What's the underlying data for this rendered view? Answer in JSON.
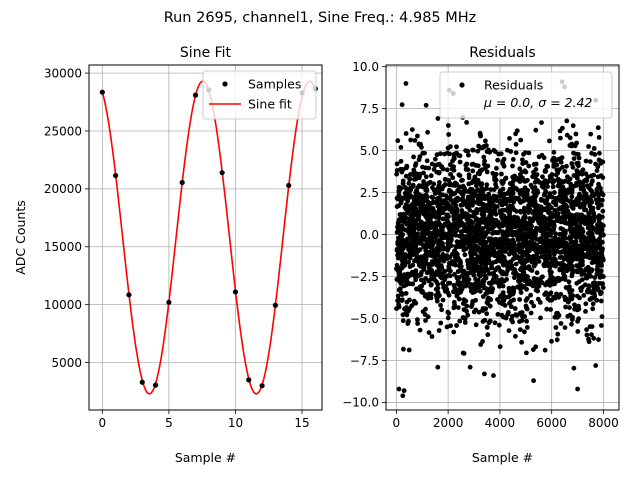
{
  "figure": {
    "suptitle": "Run 2695, channel1, Sine Freq.: 4.985 MHz"
  },
  "chart_data": [
    {
      "type": "scatter",
      "title": "Sine Fit",
      "xlabel": "Sample #",
      "ylabel": "ADC Counts",
      "xlim": [
        -1,
        16.5
      ],
      "ylim": [
        900,
        30700
      ],
      "xticks": [
        0,
        5,
        10,
        15
      ],
      "yticks": [
        5000,
        10000,
        15000,
        20000,
        25000,
        30000
      ],
      "grid": true,
      "legend_position": "upper right",
      "series": [
        {
          "name": "Samples",
          "kind": "points",
          "color": "#000000",
          "x": [
            0,
            1,
            2,
            3,
            4,
            5,
            6,
            7,
            8,
            9,
            10,
            11,
            12,
            13,
            14,
            15,
            16
          ],
          "y": [
            28350,
            21150,
            10850,
            3300,
            3050,
            10200,
            20550,
            28100,
            28550,
            21400,
            11100,
            3500,
            3000,
            9950,
            20300,
            28300,
            28650
          ]
        },
        {
          "name": "Sine fit",
          "kind": "line",
          "color": "#ff0000",
          "function": {
            "offset": 15800,
            "amplitude": 13500,
            "period_samples": 8.03,
            "x_peak": 7.55,
            "x_range": [
              0,
              16
            ]
          }
        }
      ]
    },
    {
      "type": "scatter",
      "title": "Residuals",
      "xlabel": "Sample #",
      "xlim": [
        -400,
        8600
      ],
      "ylim": [
        -10.45,
        10.1
      ],
      "xticks": [
        0,
        2000,
        4000,
        6000,
        8000
      ],
      "yticks": [
        -10.0,
        -7.5,
        -5.0,
        -2.5,
        0.0,
        2.5,
        5.0,
        7.5,
        10.0
      ],
      "grid": true,
      "legend_position": "upper right",
      "series": [
        {
          "name": "Residuals",
          "stats_label": "μ = 0.0, σ = 2.42",
          "color": "#000000",
          "distribution": {
            "count": 8000,
            "x_range": [
              0,
              8000
            ],
            "mean": 0.0,
            "std": 2.42
          },
          "outliers": [
            [
              100,
              -9.2
            ],
            [
              250,
              -9.6
            ],
            [
              300,
              -9.3
            ],
            [
              370,
              9.0
            ],
            [
              2200,
              8.4
            ],
            [
              2050,
              8.6
            ],
            [
              1150,
              7.7
            ],
            [
              6400,
              9.1
            ],
            [
              6500,
              8.8
            ],
            [
              7700,
              8.0
            ],
            [
              7000,
              -9.2
            ],
            [
              5300,
              -8.7
            ],
            [
              3750,
              -8.4
            ],
            [
              3400,
              -8.3
            ],
            [
              2850,
              -7.9
            ],
            [
              7700,
              -7.8
            ],
            [
              1600,
              -7.9
            ]
          ]
        }
      ]
    }
  ]
}
